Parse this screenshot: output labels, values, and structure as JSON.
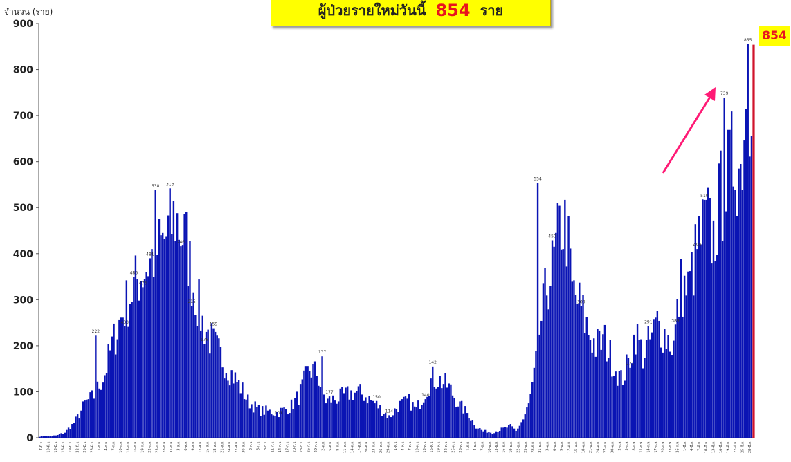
{
  "header": {
    "title_prefix": "ผู้ป่วยรายใหม่วันนี้",
    "title_number": "854",
    "title_suffix": "ราย"
  },
  "latest_badge": "854",
  "colors": {
    "bar": "#0a14b4",
    "latest_bar": "#d0142c",
    "arrow": "#ff1a75",
    "badge_bg": "#ffff00",
    "badge_text": "#e8141e"
  },
  "chart_data": {
    "type": "bar",
    "ylabel": "จำนวน (ราย)",
    "ylim": [
      0,
      900
    ],
    "yticks": [
      0,
      100,
      200,
      300,
      400,
      500,
      600,
      700,
      800,
      900
    ],
    "grid": false,
    "x_tick_labels": [
      "7-มิ.ย.",
      "10-มิ.ย.",
      "13-มิ.ย.",
      "16-มิ.ย.",
      "19-มิ.ย.",
      "22-มิ.ย.",
      "25-มิ.ย.",
      "28-มิ.ย.",
      "1-ก.ค.",
      "4-ก.ค.",
      "7-ก.ค.",
      "10-ก.ค.",
      "13-ก.ค.",
      "16-ก.ค.",
      "19-ก.ค.",
      "22-ก.ค.",
      "25-ก.ค.",
      "28-ก.ค.",
      "31-ก.ค.",
      "3-ส.ค.",
      "6-ส.ค.",
      "9-ส.ค.",
      "12-ส.ค.",
      "15-ส.ค.",
      "18-ส.ค.",
      "21-ส.ค.",
      "24-ส.ค.",
      "27-ส.ค.",
      "30-ส.ค.",
      "2-ก.ย.",
      "5-ก.ย.",
      "8-ก.ย.",
      "11-ก.ย.",
      "14-ก.ย.",
      "17-ก.ย.",
      "20-ก.ย.",
      "23-ก.ย.",
      "26-ก.ย.",
      "29-ก.ย.",
      "2-ต.ค.",
      "5-ต.ค.",
      "8-ต.ค.",
      "11-ต.ค.",
      "14-ต.ค.",
      "17-ต.ค.",
      "20-ต.ค.",
      "23-ต.ค.",
      "26-ต.ค.",
      "29-ต.ค.",
      "1-พ.ย.",
      "4-พ.ย.",
      "7-พ.ย.",
      "10-พ.ย.",
      "13-พ.ย.",
      "16-พ.ย.",
      "19-พ.ย.",
      "22-พ.ย.",
      "25-พ.ย.",
      "28-พ.ย.",
      "1-ธ.ค.",
      "4-ธ.ค.",
      "7-ธ.ค.",
      "10-ธ.ค.",
      "13-ธ.ค.",
      "16-ธ.ค.",
      "19-ธ.ค.",
      "22-ธ.ค.",
      "25-ธ.ค.",
      "28-ธ.ค.",
      "31-ธ.ค.",
      "3-ม.ค.",
      "6-ม.ค.",
      "9-ม.ค.",
      "12-ม.ค.",
      "15-ม.ค.",
      "18-ม.ค.",
      "21-ม.ค.",
      "24-ม.ค.",
      "27-ม.ค.",
      "30-ม.ค.",
      "2-ก.พ.",
      "5-ก.พ.",
      "8-ก.พ.",
      "11-ก.พ.",
      "14-ก.พ.",
      "17-ก.พ.",
      "20-ก.พ.",
      "23-ก.พ.",
      "26-ก.พ.",
      "1-มี.ค.",
      "4-มี.ค.",
      "7-มี.ค.",
      "10-มี.ค.",
      "13-มี.ค.",
      "16-มี.ค.",
      "19-มี.ค.",
      "22-มี.ค.",
      "25-มี.ค.",
      "28-มี.ค."
    ],
    "keypoints": [
      [
        0,
        3
      ],
      [
        6,
        3
      ],
      [
        10,
        6
      ],
      [
        14,
        12
      ],
      [
        18,
        28
      ],
      [
        22,
        50
      ],
      [
        25,
        75
      ],
      [
        30,
        90
      ],
      [
        36,
        140
      ],
      [
        40,
        200
      ],
      [
        44,
        250
      ],
      [
        49,
        300
      ],
      [
        55,
        350
      ],
      [
        62,
        390
      ],
      [
        68,
        420
      ],
      [
        75,
        480
      ],
      [
        81,
        420
      ],
      [
        85,
        330
      ],
      [
        90,
        250
      ],
      [
        95,
        210
      ],
      [
        101,
        170
      ],
      [
        106,
        140
      ],
      [
        111,
        110
      ],
      [
        115,
        80
      ],
      [
        121,
        60
      ],
      [
        131,
        55
      ],
      [
        138,
        65
      ],
      [
        143,
        90
      ],
      [
        149,
        150
      ],
      [
        153,
        140
      ],
      [
        158,
        80
      ],
      [
        164,
        85
      ],
      [
        170,
        95
      ],
      [
        176,
        100
      ],
      [
        182,
        85
      ],
      [
        188,
        65
      ],
      [
        193,
        45
      ],
      [
        198,
        70
      ],
      [
        204,
        80
      ],
      [
        208,
        60
      ],
      [
        212,
        95
      ],
      [
        217,
        130
      ],
      [
        221,
        125
      ],
      [
        226,
        110
      ],
      [
        232,
        70
      ],
      [
        237,
        50
      ],
      [
        241,
        25
      ],
      [
        245,
        14
      ],
      [
        250,
        12
      ],
      [
        256,
        20
      ],
      [
        260,
        25
      ],
      [
        263,
        15
      ],
      [
        267,
        40
      ],
      [
        270,
        70
      ],
      [
        273,
        130
      ],
      [
        276,
        230
      ],
      [
        280,
        330
      ],
      [
        284,
        380
      ],
      [
        288,
        470
      ],
      [
        291,
        450
      ],
      [
        294,
        320
      ],
      [
        298,
        290
      ],
      [
        303,
        230
      ],
      [
        307,
        200
      ],
      [
        312,
        210
      ],
      [
        317,
        160
      ],
      [
        321,
        125
      ],
      [
        325,
        160
      ],
      [
        329,
        230
      ],
      [
        333,
        180
      ],
      [
        337,
        210
      ],
      [
        341,
        250
      ],
      [
        345,
        225
      ],
      [
        350,
        200
      ],
      [
        354,
        330
      ],
      [
        358,
        320
      ],
      [
        363,
        410
      ],
      [
        368,
        470
      ],
      [
        372,
        430
      ],
      [
        376,
        520
      ],
      [
        380,
        560
      ],
      [
        384,
        620
      ],
      [
        387,
        580
      ],
      [
        389,
        700
      ],
      [
        392,
        760
      ],
      [
        393,
        820
      ]
    ],
    "spikes": [
      [
        64,
        538
      ],
      [
        31,
        222
      ],
      [
        156,
        177
      ],
      [
        275,
        554
      ],
      [
        378,
        739
      ],
      [
        391,
        855
      ]
    ],
    "latest_value": 854,
    "data_labels": [
      {
        "i": 31,
        "text": "222"
      },
      {
        "i": 47,
        "text": "433"
      },
      {
        "i": 52,
        "text": "486"
      },
      {
        "i": 57,
        "text": "473"
      },
      {
        "i": 61,
        "text": "481"
      },
      {
        "i": 64,
        "text": "538"
      },
      {
        "i": 72,
        "text": "313"
      },
      {
        "i": 78,
        "text": "246"
      },
      {
        "i": 84,
        "text": "215"
      },
      {
        "i": 91,
        "text": "176"
      },
      {
        "i": 96,
        "text": "159"
      },
      {
        "i": 132,
        "text": "101"
      },
      {
        "i": 156,
        "text": "177"
      },
      {
        "i": 160,
        "text": "177"
      },
      {
        "i": 186,
        "text": "150"
      },
      {
        "i": 193,
        "text": "114"
      },
      {
        "i": 213,
        "text": "140"
      },
      {
        "i": 217,
        "text": "142"
      },
      {
        "i": 275,
        "text": "554"
      },
      {
        "i": 283,
        "text": "450"
      },
      {
        "i": 299,
        "text": "300"
      },
      {
        "i": 326,
        "text": "271"
      },
      {
        "i": 336,
        "text": "291"
      },
      {
        "i": 351,
        "text": "389"
      },
      {
        "i": 363,
        "text": "490"
      },
      {
        "i": 367,
        "text": "510"
      },
      {
        "i": 378,
        "text": "739"
      },
      {
        "i": 391,
        "text": "855"
      }
    ]
  }
}
